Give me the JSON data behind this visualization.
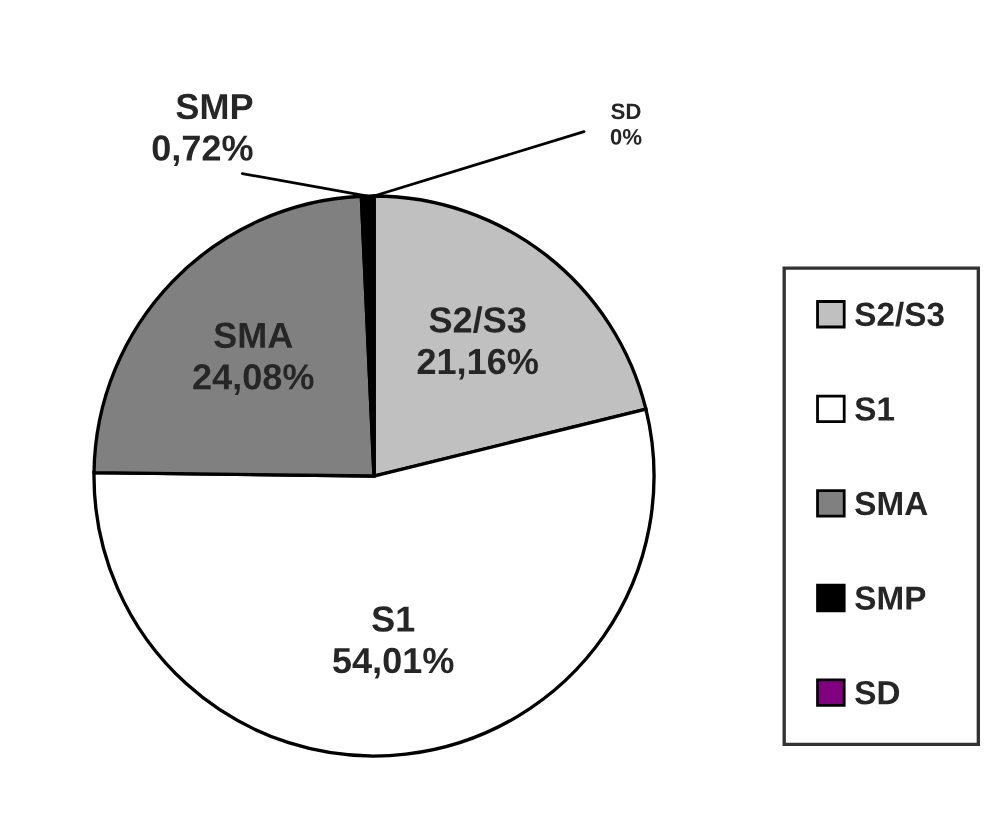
{
  "chart_data": {
    "type": "pie",
    "categories": [
      "S2/S3",
      "S1",
      "SMA",
      "SMP",
      "SD"
    ],
    "values": [
      21.16,
      54.01,
      24.08,
      0.72,
      0
    ],
    "value_labels": [
      "21,16%",
      "54,01%",
      "24,08%",
      "0,72%",
      "0%"
    ],
    "colors": [
      "#c0c0c0",
      "#ffffff",
      "#808080",
      "#000000",
      "#800080"
    ],
    "legend": "right"
  }
}
